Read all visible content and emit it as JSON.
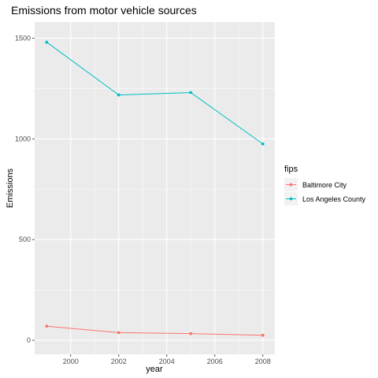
{
  "chart_data": {
    "type": "line",
    "title": "Emissions from motor vehicle sources",
    "xlabel": "year",
    "ylabel": "Emissions",
    "x": [
      1999,
      2002,
      2005,
      2008
    ],
    "xlim": [
      1998.5,
      2008.5
    ],
    "ylim": [
      -70,
      1580
    ],
    "x_ticks": [
      2000,
      2002,
      2004,
      2006,
      2008
    ],
    "y_ticks": [
      0,
      500,
      1000,
      1500
    ],
    "grid": true,
    "legend": {
      "title": "fips",
      "position": "right"
    },
    "series": [
      {
        "name": "Baltimore City",
        "color": "#F8766D",
        "values": [
          70,
          38,
          33,
          25
        ]
      },
      {
        "name": "Los Angeles County",
        "color": "#00BFC4",
        "values": [
          1480,
          1218,
          1230,
          975
        ]
      }
    ],
    "panel_color": "#EBEBEB",
    "grid_color": "#FFFFFF"
  }
}
